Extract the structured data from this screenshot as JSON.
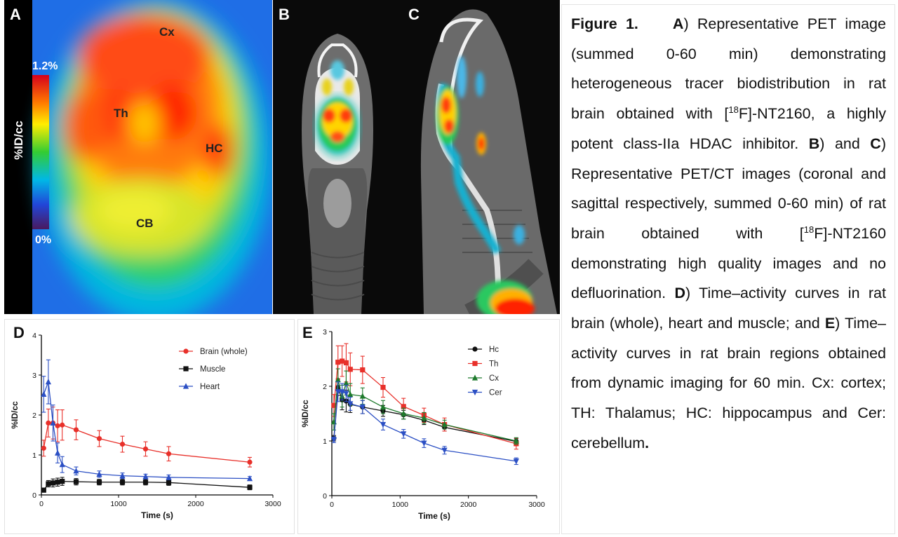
{
  "panels": {
    "A": {
      "letter": "A",
      "regions": {
        "cx": "Cx",
        "th": "Th",
        "hc": "HC",
        "cb": "CB"
      },
      "scale_max": "1.2%",
      "scale_min": "0%",
      "ylabel": "%ID/cc"
    },
    "B": {
      "letter": "B"
    },
    "C": {
      "letter": "C"
    }
  },
  "caption": {
    "figure_label": "Figure 1.",
    "a_letter": "A",
    "a_text": ") Representative PET image (summed 0-60 min) demonstrating heterogeneous tracer biodistribution in rat brain obtained with [",
    "sup1": "18",
    "a_text2": "F]-NT2160, a highly potent class-IIa HDAC inhibitor. ",
    "b_letter": "B",
    "b_text": ") and ",
    "c_letter": "C",
    "c_text": ") Representative PET/CT images (coronal and sagittal respectively, summed 0-60 min) of rat brain obtained with [",
    "sup2": "18",
    "c_text2": "F]-NT2160 demonstrating high quality images and no defluorination. ",
    "d_letter": "D",
    "d_text": ") Time–activity curves in rat brain (whole), heart and muscle; and ",
    "e_letter": "E",
    "e_text": ") Time–activity curves in rat brain regions obtained from dynamic imaging for 60 min.  Cx: cortex; TH: Thalamus; HC: hippocampus and Cer: cerebellum",
    "end": "."
  },
  "chart_data": [
    {
      "panel": "D",
      "type": "line",
      "xlabel": "Time (s)",
      "ylabel": "%ID/cc",
      "xlim": [
        0,
        3000
      ],
      "ylim": [
        0,
        4
      ],
      "xticks": [
        0,
        1000,
        2000,
        3000
      ],
      "yticks": [
        0,
        1,
        2,
        3,
        4
      ],
      "legend": "top-right",
      "series": [
        {
          "name": "Brain (whole)",
          "color": "#e8302a",
          "marker": "circle",
          "x": [
            30,
            90,
            150,
            210,
            270,
            450,
            750,
            1050,
            1350,
            1650,
            2700
          ],
          "y": [
            1.17,
            1.8,
            1.8,
            1.73,
            1.75,
            1.63,
            1.41,
            1.27,
            1.15,
            1.03,
            0.82
          ],
          "err": [
            0.2,
            0.35,
            0.4,
            0.4,
            0.38,
            0.25,
            0.2,
            0.2,
            0.18,
            0.18,
            0.12
          ]
        },
        {
          "name": "Muscle",
          "color": "#111111",
          "marker": "square",
          "x": [
            30,
            90,
            150,
            210,
            270,
            450,
            750,
            1050,
            1350,
            1650,
            2700
          ],
          "y": [
            0.12,
            0.28,
            0.3,
            0.32,
            0.34,
            0.33,
            0.32,
            0.32,
            0.32,
            0.31,
            0.19
          ],
          "err": [
            0.05,
            0.08,
            0.1,
            0.1,
            0.1,
            0.08,
            0.07,
            0.07,
            0.07,
            0.07,
            0.06
          ]
        },
        {
          "name": "Heart",
          "color": "#2b4fc4",
          "marker": "triangle",
          "x": [
            30,
            90,
            150,
            210,
            270,
            450,
            750,
            1050,
            1350,
            1650,
            2700
          ],
          "y": [
            2.52,
            2.83,
            1.8,
            1.05,
            0.76,
            0.6,
            0.52,
            0.48,
            0.46,
            0.44,
            0.41
          ],
          "err": [
            0.45,
            0.55,
            0.45,
            0.25,
            0.2,
            0.1,
            0.08,
            0.07,
            0.06,
            0.06,
            0.05
          ]
        }
      ]
    },
    {
      "panel": "E",
      "type": "line",
      "xlabel": "Time (s)",
      "ylabel": "%ID/cc",
      "xlim": [
        0,
        3000
      ],
      "ylim": [
        0,
        3
      ],
      "xticks": [
        0,
        1000,
        2000,
        3000
      ],
      "yticks": [
        0,
        1,
        2,
        3
      ],
      "legend": "top-right",
      "series": [
        {
          "name": "Hc",
          "color": "#111111",
          "marker": "circle",
          "x": [
            30,
            90,
            150,
            210,
            270,
            450,
            750,
            1050,
            1350,
            1650,
            2700
          ],
          "y": [
            1.05,
            1.98,
            1.75,
            1.73,
            1.67,
            1.62,
            1.55,
            1.48,
            1.38,
            1.25,
            0.99
          ],
          "err": [
            0.05,
            0.15,
            0.18,
            0.2,
            0.15,
            0.12,
            0.1,
            0.08,
            0.08,
            0.07,
            0.05
          ]
        },
        {
          "name": "Th",
          "color": "#e8302a",
          "marker": "square",
          "x": [
            30,
            90,
            150,
            210,
            270,
            450,
            750,
            1050,
            1350,
            1650,
            2700
          ],
          "y": [
            1.65,
            2.44,
            2.46,
            2.43,
            2.31,
            2.3,
            1.98,
            1.63,
            1.47,
            1.3,
            0.95
          ],
          "err": [
            0.2,
            0.3,
            0.28,
            0.35,
            0.3,
            0.25,
            0.18,
            0.15,
            0.13,
            0.12,
            0.1
          ]
        },
        {
          "name": "Cx",
          "color": "#1e7a2c",
          "marker": "triangle",
          "x": [
            30,
            90,
            150,
            210,
            270,
            450,
            750,
            1050,
            1350,
            1650,
            2700
          ],
          "y": [
            1.35,
            2.12,
            1.82,
            2.06,
            1.85,
            1.82,
            1.62,
            1.5,
            1.42,
            1.3,
            1.0
          ],
          "err": [
            0.15,
            0.2,
            0.2,
            0.22,
            0.2,
            0.15,
            0.12,
            0.1,
            0.1,
            0.08,
            0.06
          ]
        },
        {
          "name": "Cer",
          "color": "#2b4fc4",
          "marker": "triangle-down",
          "x": [
            30,
            90,
            150,
            210,
            270,
            450,
            750,
            1050,
            1350,
            1650,
            2700
          ],
          "y": [
            1.02,
            1.9,
            1.9,
            1.87,
            1.68,
            1.62,
            1.3,
            1.13,
            0.96,
            0.83,
            0.63
          ],
          "err": [
            0.05,
            0.18,
            0.15,
            0.15,
            0.12,
            0.12,
            0.1,
            0.08,
            0.08,
            0.07,
            0.06
          ]
        }
      ]
    }
  ]
}
